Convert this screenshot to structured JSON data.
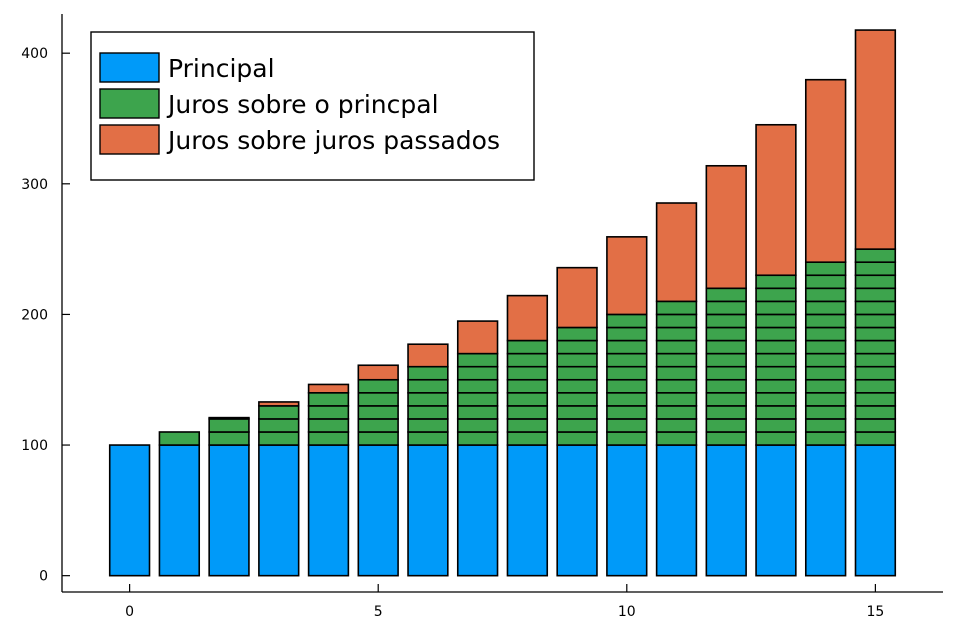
{
  "chart_data": {
    "type": "bar",
    "stacked": true,
    "x": [
      0,
      1,
      2,
      3,
      4,
      5,
      6,
      7,
      8,
      9,
      10,
      11,
      12,
      13,
      14,
      15
    ],
    "series": [
      {
        "name": "Principal",
        "color": "#009af9",
        "values": [
          100,
          100,
          100,
          100,
          100,
          100,
          100,
          100,
          100,
          100,
          100,
          100,
          100,
          100,
          100,
          100
        ]
      },
      {
        "name": "Juros sobre o princpal",
        "color": "#3da44d",
        "segment_size": 10,
        "values": [
          0,
          10,
          20,
          30,
          40,
          50,
          60,
          70,
          80,
          90,
          100,
          110,
          120,
          130,
          140,
          150
        ]
      },
      {
        "name": "Juros sobre juros passados",
        "color": "#e26f46",
        "values": [
          0,
          0,
          1,
          3,
          6.4,
          11.1,
          17.2,
          24.9,
          34.4,
          45.8,
          59.4,
          75.3,
          93.8,
          115.2,
          139.7,
          167.7
        ]
      }
    ],
    "xticks": [
      "0",
      "5",
      "10",
      "15"
    ],
    "xtick_values": [
      0,
      5,
      10,
      15
    ],
    "yticks": [
      "0",
      "100",
      "200",
      "300",
      "400"
    ],
    "ytick_values": [
      0,
      100,
      200,
      300,
      400
    ],
    "xlim": [
      -1.36,
      16.36
    ],
    "ylim": [
      -12.5,
      430
    ],
    "grid": false,
    "legend_position": "top-left",
    "title": "",
    "xlabel": "",
    "ylabel": ""
  }
}
